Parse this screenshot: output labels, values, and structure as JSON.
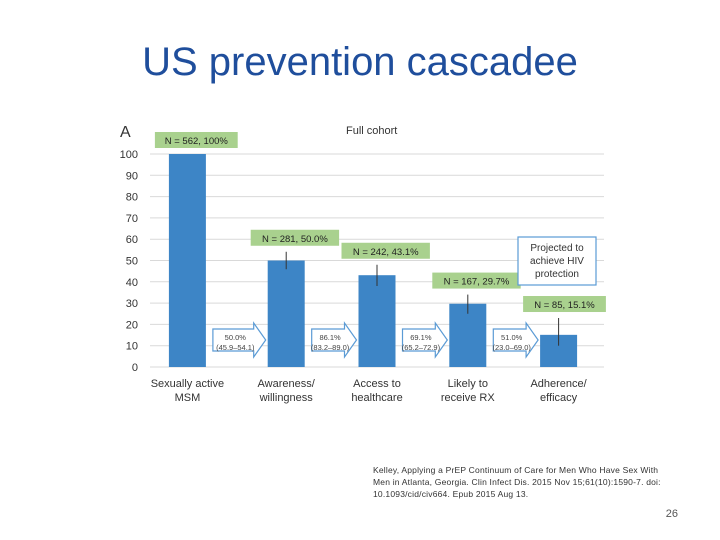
{
  "slide": {
    "title": "US prevention cascadee",
    "citation": "Kelley, Applying a PrEP Continuum of Care for Men Who Have Sex With Men in Atlanta, Georgia. Clin Infect Dis. 2015 Nov 15;61(10):1590-7. doi: 10.1093/cid/civ664. Epub 2015 Aug 13.",
    "page_number": "26"
  },
  "colors": {
    "bar": "#3d85c6",
    "label_bg": "#a9d18e",
    "arrow_stroke": "#5b9bd5",
    "grid": "#d9d9d9",
    "title": "#1f4e9c"
  },
  "chart_data": {
    "type": "bar",
    "panel_label": "A",
    "title": "Full cohort",
    "categories": [
      "Sexually active\nMSM",
      "Awareness/\nwillingness",
      "Access to\nhealthcare",
      "Likely to\nreceive RX",
      "Adherence/\nefficacy"
    ],
    "values": [
      100,
      50.0,
      43.1,
      29.7,
      15.1
    ],
    "bar_labels": [
      "N = 562, 100%",
      "N = 281, 50.0%",
      "N = 242, 43.1%",
      "N = 167, 29.7%",
      "N = 85, 15.1%"
    ],
    "error_bars": [
      null,
      [
        45.9,
        54.1
      ],
      [
        38.0,
        48.0
      ],
      [
        25.0,
        34.0
      ],
      [
        10.0,
        23.0
      ]
    ],
    "transitions": [
      {
        "pct": "50.0%",
        "ci": "(45.9–54.1)"
      },
      {
        "pct": "86.1%",
        "ci": "(83.2–89.0)"
      },
      {
        "pct": "69.1%",
        "ci": "(65.2–72.9)"
      },
      {
        "pct": "51.0%",
        "ci": "(23.0–69.0)"
      }
    ],
    "annotation": "Projected to\nachieve HIV\nprotection",
    "yticks": [
      0,
      10,
      20,
      30,
      40,
      50,
      60,
      70,
      80,
      90,
      100
    ],
    "ylim": [
      0,
      100
    ],
    "grid": true
  }
}
